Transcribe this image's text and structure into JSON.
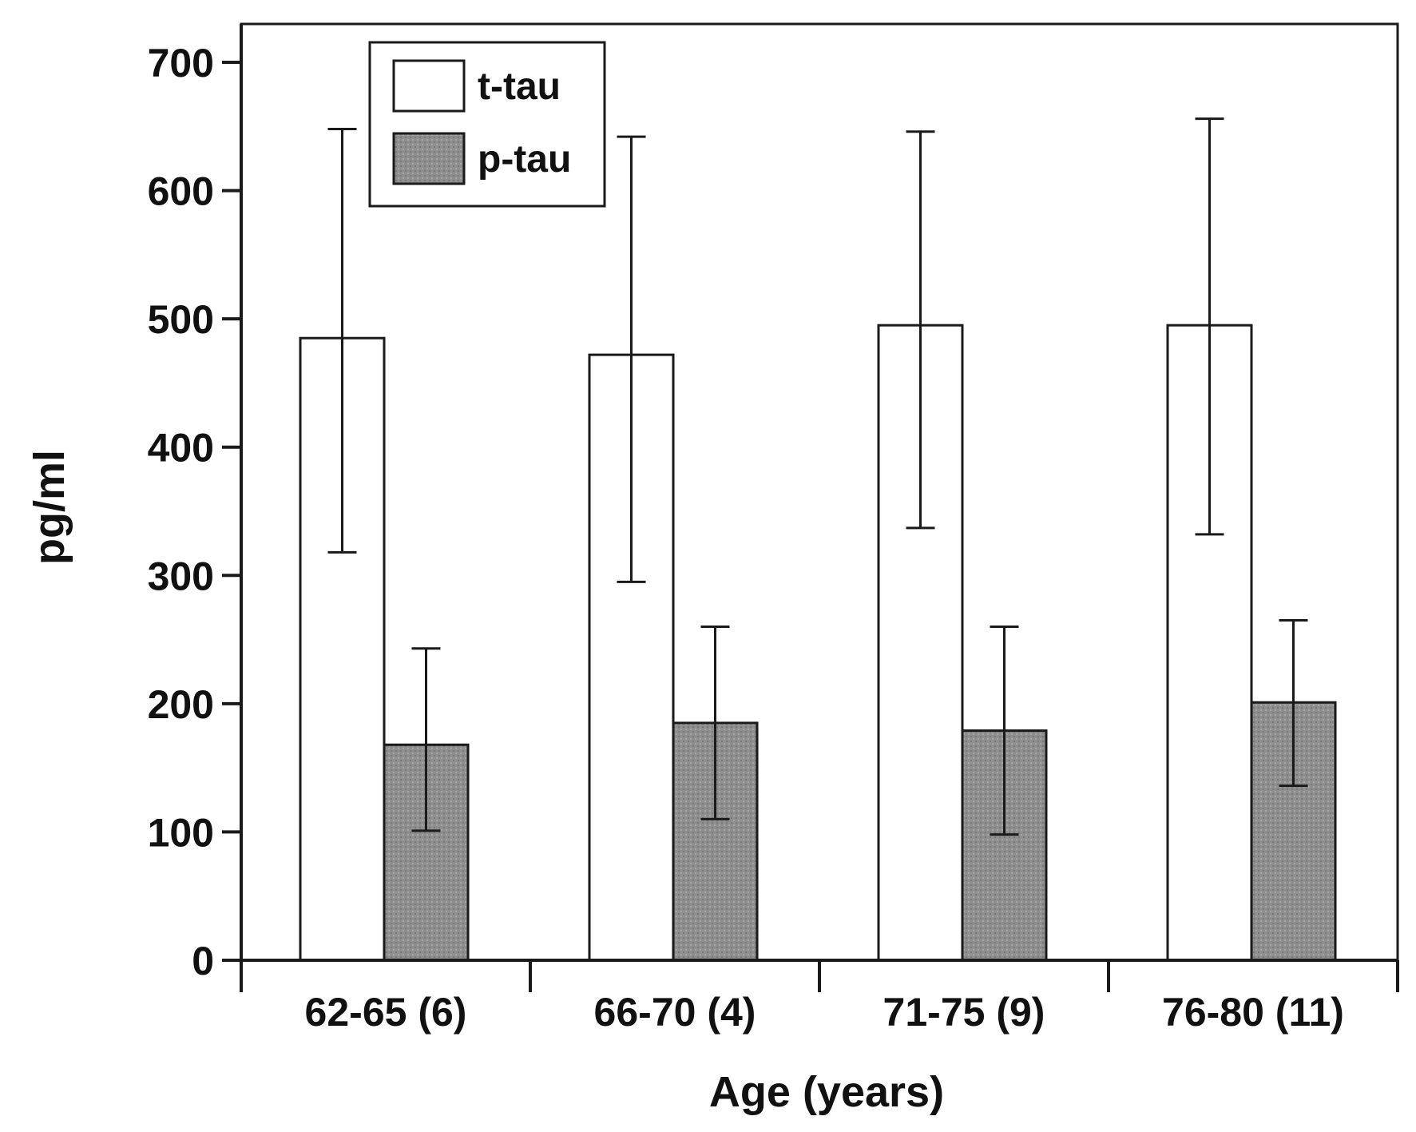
{
  "chart_data": {
    "type": "bar",
    "title": "",
    "xlabel": "Age (years)",
    "ylabel": "pg/ml",
    "ylim": [
      0,
      700
    ],
    "yticks": [
      0,
      100,
      200,
      300,
      400,
      500,
      600,
      700
    ],
    "categories": [
      "62-65 (6)",
      "66-70 (4)",
      "71-75 (9)",
      "76-80 (11)"
    ],
    "series": [
      {
        "name": "t-tau",
        "values": [
          485,
          472,
          495,
          495
        ],
        "error_low": [
          318,
          295,
          337,
          332
        ],
        "error_high": [
          648,
          642,
          646,
          656
        ],
        "color": "#ffffff"
      },
      {
        "name": "p-tau",
        "values": [
          168,
          185,
          179,
          201
        ],
        "error_low": [
          101,
          110,
          98,
          136
        ],
        "error_high": [
          243,
          260,
          260,
          265
        ],
        "color": "#8c8c8c"
      }
    ],
    "legend_position": "top-left",
    "grid": false
  }
}
